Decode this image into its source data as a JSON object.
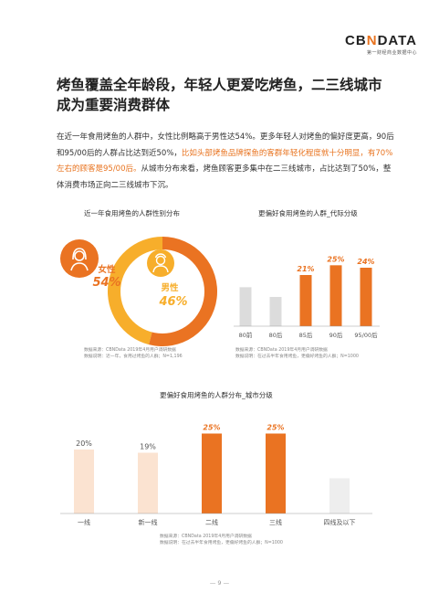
{
  "logo": {
    "main_pre": "CB",
    "main_x": "N",
    "main_post": "DATA",
    "sub": "第一财经商业数据中心"
  },
  "title": "烤鱼覆盖全年龄段，年轻人更爱吃烤鱼，二三线城市成为重要消费群体",
  "paragraph": {
    "part1": "在近一年食用烤鱼的人群中，女性比例略高于男性达54%。更多年轻人对烤鱼的偏好度更高，90后和95/00后的人群占比达到近50%，",
    "highlight": "比如头部烤鱼品牌探鱼的客群年轻化程度就十分明显，有70%左右的顾客是95/00后。",
    "part2": "从城市分布来看，烤鱼顾客更多集中在二三线城市，占比达到了50%，整体消费市场正向二三线城市下沉。"
  },
  "gender_chart": {
    "title": "近一年食用烤鱼的人群性别分布",
    "female_label": "女性",
    "female_value": "54%",
    "male_label": "男性",
    "male_value": "46%",
    "source_line1": "数据来源：CBNData 2019年4月用户调研数据",
    "source_line2": "数据说明：近一年，食用过烤鱼的人群；N=1,196"
  },
  "chart_data": [
    {
      "type": "pie",
      "title": "近一年食用烤鱼的人群性别分布",
      "categories": [
        "女性",
        "男性"
      ],
      "values": [
        54,
        46
      ],
      "colors": [
        "#ea7322",
        "#f7ae2b"
      ]
    },
    {
      "type": "bar",
      "title": "更偏好食用烤鱼的人群_代际分级",
      "categories": [
        "80前",
        "80后",
        "85后",
        "90后",
        "95/00后"
      ],
      "values": [
        16,
        12,
        21,
        25,
        24
      ],
      "labels": [
        "",
        "",
        "21%",
        "25%",
        "24%"
      ],
      "colors": [
        "#dcdcdc",
        "#dcdcdc",
        "#ea7322",
        "#ea7322",
        "#ea7322"
      ],
      "ylim": [
        0,
        30
      ],
      "source_line1": "数据来源：CBNData 2019年4月用户调研数据",
      "source_line2": "数据说明：在过去半年食用烤鱼，更偏好烤鱼的人群；N=1000"
    },
    {
      "type": "bar",
      "title": "更偏好食用烤鱼的人群分布_城市分级",
      "categories": [
        "一线",
        "新一线",
        "二线",
        "三线",
        "四线及以下"
      ],
      "values": [
        20,
        19,
        25,
        25,
        11
      ],
      "labels": [
        "20%",
        "19%",
        "25%",
        "25%",
        ""
      ],
      "colors": [
        "#fbe3d1",
        "#fbe3d1",
        "#ea7322",
        "#ea7322",
        "#eeeeee"
      ],
      "label_colors": [
        "#555555",
        "#555555",
        "#ea7322",
        "#ea7322",
        "#555555"
      ],
      "ylim": [
        0,
        30
      ],
      "source_line1": "数据来源：CBNData 2019年4月用户调研数据",
      "source_line2": "数据说明：在过去半年食用烤鱼，更偏好烤鱼的人群；N=1000"
    }
  ],
  "page_number": "— 9 —"
}
